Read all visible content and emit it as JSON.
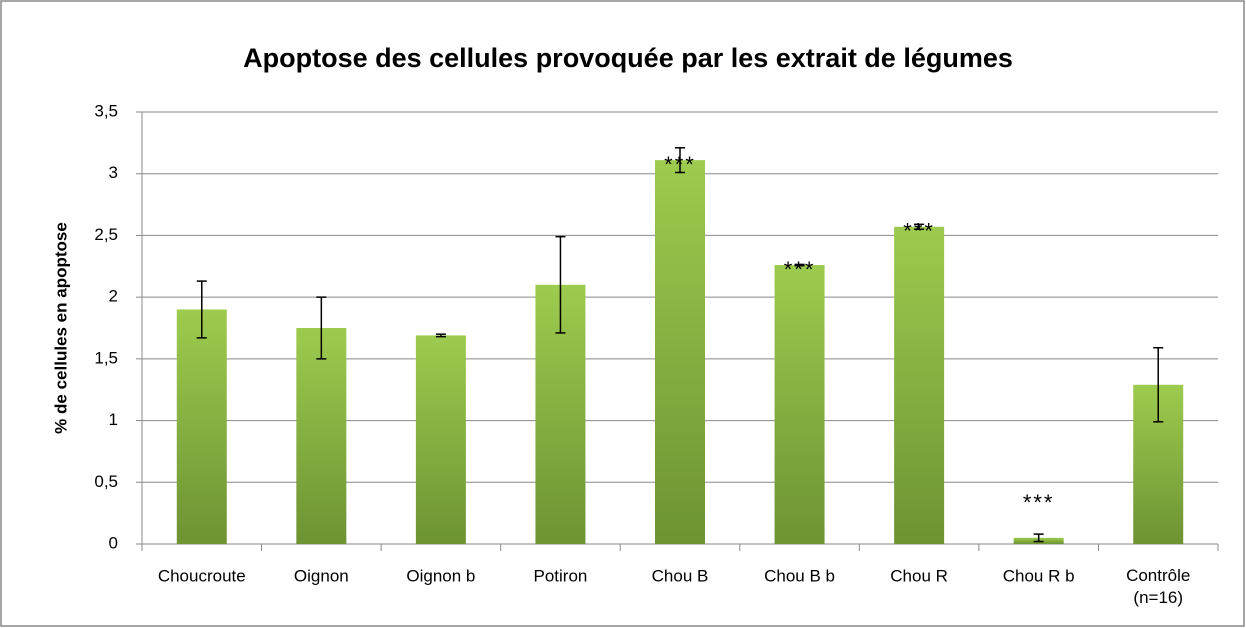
{
  "chart_data": {
    "type": "bar",
    "title": "Apoptose des cellules provoquée par les extrait de légumes",
    "y_label": "% de cellules en apoptose",
    "categories": [
      "Choucroute",
      "Oignon",
      "Oignon b",
      "Potiron",
      "Chou B",
      "Chou B b",
      "Chou R",
      "Chou R b",
      "Contrôle\n(n=16)"
    ],
    "values": [
      1.9,
      1.75,
      1.69,
      2.1,
      3.11,
      2.26,
      2.57,
      0.05,
      1.29
    ],
    "errors": [
      0.23,
      0.25,
      0.01,
      0.39,
      0.1,
      0.005,
      0.02,
      0.03,
      0.3
    ],
    "color": "#8db848",
    "ylim": [
      0,
      3.5
    ],
    "yticks": [
      0,
      {
        "value": 0.5,
        "label": "0,5"
      },
      1,
      {
        "value": 1.5,
        "label": "1,5"
      },
      2,
      {
        "value": 2.5,
        "label": "2,5"
      },
      3,
      {
        "value": 3.5,
        "label": "3,5"
      }
    ],
    "grid": true,
    "annotations": [
      {
        "text": "***",
        "category": "Chou B"
      },
      {
        "text": "***",
        "category": "Chou B b"
      },
      {
        "text": "***",
        "category": "Chou R"
      },
      {
        "text": "***",
        "category": "Chou R b"
      }
    ]
  }
}
